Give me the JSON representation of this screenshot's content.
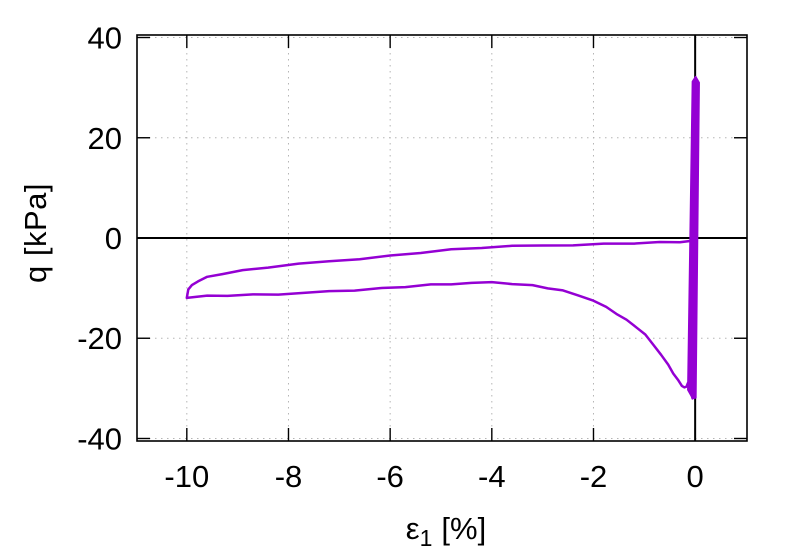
{
  "labels": {
    "ylabel": "q [kPa]",
    "xlabel_symbol": "ε",
    "xlabel_sub": "1",
    "xlabel_unit": "[%]"
  },
  "chart_data": {
    "type": "line",
    "xlabel": "ε1 [%]",
    "ylabel": "q [kPa]",
    "xlim": [
      -10.98,
      1.02
    ],
    "ylim": [
      -40.5,
      40.5
    ],
    "xticks": [
      -10,
      -8,
      -6,
      -4,
      -2,
      0
    ],
    "yticks": [
      -40,
      -20,
      0,
      20,
      40
    ],
    "grid": "dotted",
    "grid_color": "#b5b5b5",
    "zero_axes": true,
    "axis_color": "#000000",
    "background": "#ffffff",
    "legend": "none",
    "series": [
      {
        "name": "initial-cycles-band",
        "color": "#9400d3",
        "style": "filled-band",
        "points": [
          [
            -0.055,
            31.2
          ],
          [
            0.01,
            32.2
          ],
          [
            0.08,
            31.0
          ],
          [
            0.015,
            -31.9
          ],
          [
            -0.05,
            -32.0
          ],
          [
            -0.145,
            -30.3
          ]
        ]
      },
      {
        "name": "hysteresis-loop",
        "color": "#9400d3",
        "style": "line",
        "points": [
          [
            -0.1,
            -0.75
          ],
          [
            -0.3,
            -0.8
          ],
          [
            -0.7,
            -0.9
          ],
          [
            -1.2,
            -1.02
          ],
          [
            -1.8,
            -1.16
          ],
          [
            -2.4,
            -1.32
          ],
          [
            -3.0,
            -1.5
          ],
          [
            -3.6,
            -1.7
          ],
          [
            -4.2,
            -1.95
          ],
          [
            -4.8,
            -2.35
          ],
          [
            -5.4,
            -2.9
          ],
          [
            -6.0,
            -3.55
          ],
          [
            -6.6,
            -4.1
          ],
          [
            -7.2,
            -4.65
          ],
          [
            -7.8,
            -5.25
          ],
          [
            -8.4,
            -5.85
          ],
          [
            -8.9,
            -6.5
          ],
          [
            -9.3,
            -7.1
          ],
          [
            -9.6,
            -7.8
          ],
          [
            -9.78,
            -8.5
          ],
          [
            -9.9,
            -9.4
          ],
          [
            -9.97,
            -10.4
          ],
          [
            -10.0,
            -11.9
          ],
          [
            -9.6,
            -11.6
          ],
          [
            -9.2,
            -11.45
          ],
          [
            -8.7,
            -11.3
          ],
          [
            -8.2,
            -11.15
          ],
          [
            -7.7,
            -10.95
          ],
          [
            -7.2,
            -10.75
          ],
          [
            -6.7,
            -10.45
          ],
          [
            -6.2,
            -10.1
          ],
          [
            -5.7,
            -9.7
          ],
          [
            -5.2,
            -9.3
          ],
          [
            -4.8,
            -9.1
          ],
          [
            -4.4,
            -8.95
          ],
          [
            -4.0,
            -8.95
          ],
          [
            -3.6,
            -9.15
          ],
          [
            -3.2,
            -9.5
          ],
          [
            -2.9,
            -9.95
          ],
          [
            -2.6,
            -10.5
          ],
          [
            -2.3,
            -11.3
          ],
          [
            -2.0,
            -12.5
          ],
          [
            -1.75,
            -13.9
          ],
          [
            -1.55,
            -15.1
          ],
          [
            -1.35,
            -16.4
          ],
          [
            -1.15,
            -17.8
          ],
          [
            -0.98,
            -19.3
          ],
          [
            -0.82,
            -21.2
          ],
          [
            -0.67,
            -23.3
          ],
          [
            -0.53,
            -25.4
          ],
          [
            -0.43,
            -27.0
          ],
          [
            -0.33,
            -28.5
          ],
          [
            -0.26,
            -29.4
          ],
          [
            -0.21,
            -29.85
          ],
          [
            -0.17,
            -29.5
          ],
          [
            -0.14,
            -28.9
          ],
          [
            -0.12,
            -29.3
          ],
          [
            -0.09,
            -30.4
          ],
          [
            -0.07,
            -31.3
          ],
          [
            -0.05,
            -31.9
          ]
        ]
      }
    ]
  }
}
